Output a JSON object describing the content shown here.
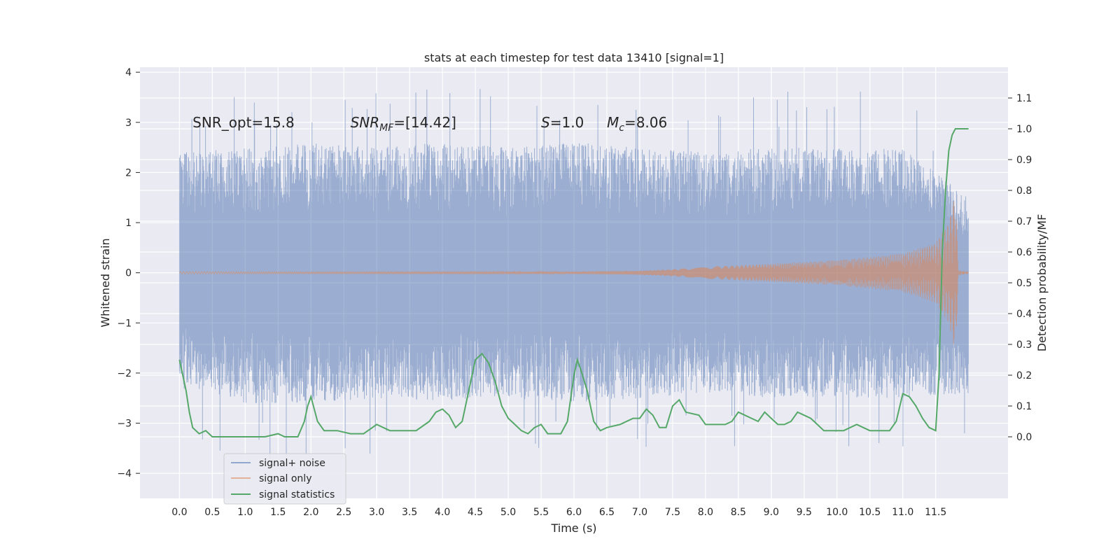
{
  "chart_data": {
    "type": "line",
    "title": "stats at each timestep for test data 13410 [signal=1]",
    "xlabel": "Time (s)",
    "ylabel": "Whitened strain",
    "y2label": "Detection probability/MF",
    "xlim": [
      -0.6,
      12.6
    ],
    "ylim": [
      -4.5,
      4.1
    ],
    "y2lim": [
      -0.2,
      1.2
    ],
    "x_ticks": [
      0.0,
      0.5,
      1.0,
      1.5,
      2.0,
      2.5,
      3.0,
      3.5,
      4.0,
      4.5,
      5.0,
      5.5,
      6.0,
      6.5,
      7.0,
      7.5,
      8.0,
      8.5,
      9.0,
      9.5,
      10.0,
      10.5,
      11.0,
      11.5
    ],
    "x_tick_labels": [
      "0.0",
      "0.5",
      "1.0",
      "1.5",
      "2.0",
      "2.5",
      "3.0",
      "3.5",
      "4.0",
      "4.5",
      "5.0",
      "5.5",
      "6.0",
      "6.5",
      "7.0",
      "7.5",
      "8.0",
      "8.5",
      "9.0",
      "9.5",
      "10.0",
      "10.5",
      "11.0",
      "11.5"
    ],
    "y_ticks": [
      4,
      3,
      2,
      1,
      0,
      -1,
      -2,
      -3,
      -4
    ],
    "y_tick_labels": [
      "4",
      "3",
      "2",
      "1",
      "0",
      "−1",
      "−2",
      "−3",
      "−4"
    ],
    "y2_ticks": [
      1.1,
      1.0,
      0.9,
      0.8,
      0.7,
      0.6,
      0.5,
      0.4,
      0.3,
      0.2,
      0.1,
      0.0
    ],
    "y2_tick_labels": [
      "1.1",
      "1.0",
      "0.9",
      "0.8",
      "0.7",
      "0.6",
      "0.5",
      "0.4",
      "0.3",
      "0.2",
      "0.1",
      "0.0"
    ],
    "grid": true,
    "legend_position": "lower-left",
    "annotations": [
      {
        "text": "SNR_opt=15.8",
        "x": 0.2,
        "y": 2.9
      },
      {
        "text": "SNR_MF=[14.42]",
        "x": 2.6,
        "y": 2.9
      },
      {
        "text": "S=1.0",
        "x": 5.5,
        "y": 2.9
      },
      {
        "text": "M_c=8.06",
        "x": 6.5,
        "y": 2.9
      }
    ],
    "series": [
      {
        "name": "signal+ noise",
        "color": "#4c72b0",
        "axis": "left",
        "envelope": {
          "x": [
            0.0,
            1.0,
            2.0,
            3.0,
            4.0,
            5.0,
            6.0,
            7.0,
            8.0,
            9.0,
            10.0,
            11.0,
            12.0
          ],
          "upper": [
            2.4,
            2.5,
            2.6,
            2.5,
            2.6,
            2.5,
            2.6,
            2.5,
            2.4,
            2.5,
            2.5,
            2.5,
            1.5
          ],
          "lower": [
            -2.3,
            -2.6,
            -2.6,
            -2.5,
            -2.6,
            -2.5,
            -2.6,
            -2.5,
            -2.4,
            -2.5,
            -2.5,
            -2.5,
            -2.4
          ]
        }
      },
      {
        "name": "signal only",
        "color": "#dd8452",
        "axis": "left",
        "envelope": {
          "x": [
            0.0,
            6.0,
            7.0,
            7.5,
            8.0,
            9.0,
            10.0,
            11.0,
            11.5,
            11.7,
            11.8,
            11.85,
            12.0
          ],
          "upper": [
            0.02,
            0.02,
            0.04,
            0.07,
            0.12,
            0.18,
            0.25,
            0.38,
            0.6,
            1.0,
            1.6,
            0.05,
            0.02
          ],
          "lower": [
            -0.02,
            -0.02,
            -0.04,
            -0.07,
            -0.12,
            -0.18,
            -0.25,
            -0.38,
            -0.6,
            -1.0,
            -1.6,
            -0.05,
            -0.02
          ]
        }
      },
      {
        "name": "signal statistics",
        "color": "#55a868",
        "axis": "right",
        "x": [
          0.0,
          0.1,
          0.15,
          0.2,
          0.3,
          0.4,
          0.5,
          0.7,
          1.0,
          1.3,
          1.5,
          1.6,
          1.8,
          1.9,
          1.95,
          2.0,
          2.1,
          2.2,
          2.4,
          2.6,
          2.8,
          3.0,
          3.1,
          3.2,
          3.4,
          3.6,
          3.8,
          3.9,
          4.0,
          4.1,
          4.2,
          4.3,
          4.4,
          4.5,
          4.6,
          4.7,
          4.8,
          4.9,
          5.0,
          5.1,
          5.2,
          5.3,
          5.4,
          5.5,
          5.6,
          5.7,
          5.8,
          5.9,
          6.0,
          6.05,
          6.1,
          6.2,
          6.3,
          6.4,
          6.5,
          6.7,
          6.9,
          7.0,
          7.1,
          7.2,
          7.3,
          7.4,
          7.5,
          7.6,
          7.7,
          7.9,
          8.0,
          8.1,
          8.3,
          8.4,
          8.5,
          8.6,
          8.7,
          8.8,
          8.9,
          9.0,
          9.1,
          9.2,
          9.3,
          9.4,
          9.5,
          9.6,
          9.7,
          9.8,
          9.9,
          10.0,
          10.1,
          10.2,
          10.3,
          10.4,
          10.5,
          10.6,
          10.7,
          10.8,
          10.9,
          11.0,
          11.1,
          11.2,
          11.3,
          11.4,
          11.5,
          11.55,
          11.6,
          11.65,
          11.7,
          11.75,
          11.8,
          11.9,
          12.0
        ],
        "y": [
          0.25,
          0.15,
          0.08,
          0.03,
          0.01,
          0.02,
          0.0,
          0.0,
          0.0,
          0.0,
          0.01,
          0.0,
          0.0,
          0.05,
          0.1,
          0.13,
          0.05,
          0.02,
          0.02,
          0.01,
          0.01,
          0.04,
          0.03,
          0.02,
          0.02,
          0.02,
          0.05,
          0.08,
          0.09,
          0.07,
          0.03,
          0.05,
          0.15,
          0.25,
          0.27,
          0.24,
          0.18,
          0.1,
          0.06,
          0.04,
          0.02,
          0.01,
          0.03,
          0.04,
          0.01,
          0.01,
          0.01,
          0.05,
          0.2,
          0.25,
          0.22,
          0.15,
          0.05,
          0.02,
          0.03,
          0.04,
          0.06,
          0.06,
          0.09,
          0.07,
          0.03,
          0.03,
          0.1,
          0.12,
          0.08,
          0.07,
          0.04,
          0.04,
          0.04,
          0.05,
          0.08,
          0.07,
          0.06,
          0.05,
          0.08,
          0.06,
          0.04,
          0.04,
          0.05,
          0.08,
          0.07,
          0.06,
          0.04,
          0.02,
          0.02,
          0.02,
          0.02,
          0.03,
          0.04,
          0.03,
          0.02,
          0.02,
          0.02,
          0.02,
          0.05,
          0.14,
          0.13,
          0.1,
          0.06,
          0.03,
          0.02,
          0.2,
          0.6,
          0.8,
          0.93,
          0.98,
          1.0,
          1.0,
          1.0
        ]
      }
    ]
  },
  "legend": {
    "items": [
      {
        "label": "signal+ noise",
        "color": "#4c72b0"
      },
      {
        "label": "signal only",
        "color": "#dd8452"
      },
      {
        "label": "signal statistics",
        "color": "#55a868"
      }
    ]
  }
}
